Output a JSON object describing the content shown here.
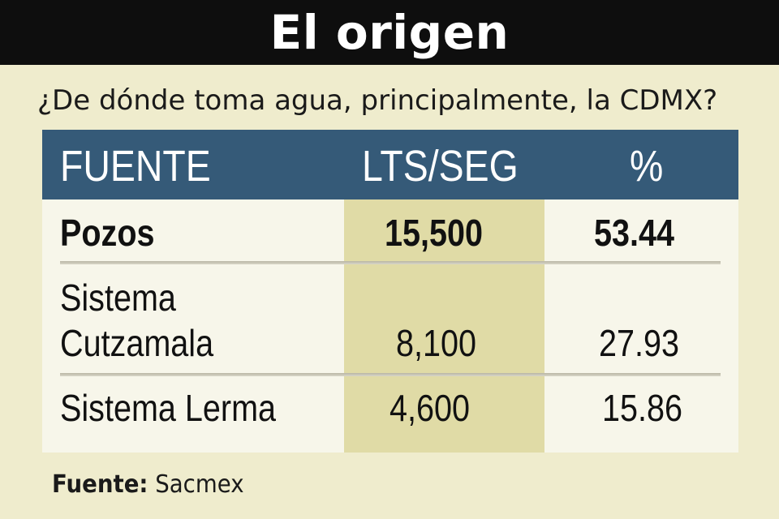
{
  "title": "El origen",
  "question": "¿De dónde toma agua, principalmente, la CDMX?",
  "table": {
    "headers": [
      "FUENTE",
      "LTS/SEG",
      "%"
    ],
    "rows": [
      {
        "fuente_line1": "Pozos",
        "fuente_line2": "",
        "lts_seg": "15,500",
        "pct": "53.44"
      },
      {
        "fuente_line1": "Sistema",
        "fuente_line2": "Cutzamala",
        "lts_seg": "8,100",
        "pct": "27.93"
      },
      {
        "fuente_line1": "Sistema Lerma",
        "fuente_line2": "",
        "lts_seg": "4,600",
        "pct": "15.86"
      }
    ]
  },
  "source": {
    "label": "Fuente:",
    "value": "Sacmex"
  },
  "colors": {
    "background": "#efeccd",
    "title_bar": "#0e0e0e",
    "header": "#355a78",
    "highlight_column": "#e0dba6",
    "table_body": "#f7f6ea"
  },
  "chart_data": {
    "type": "table",
    "title": "El origen",
    "subtitle": "¿De dónde toma agua, principalmente, la CDMX?",
    "columns": [
      "FUENTE",
      "LTS/SEG",
      "%"
    ],
    "rows": [
      [
        "Pozos",
        15500,
        53.44
      ],
      [
        "Sistema Cutzamala",
        8100,
        27.93
      ],
      [
        "Sistema Lerma",
        4600,
        15.86
      ]
    ],
    "source": "Sacmex"
  }
}
